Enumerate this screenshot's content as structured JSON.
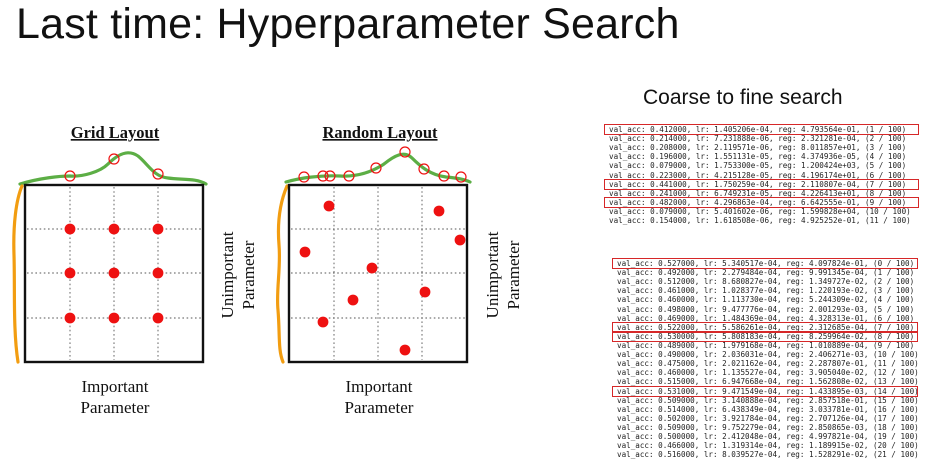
{
  "title": "Last time: Hyperparameter Search",
  "panels": {
    "grid": {
      "title": "Grid Layout",
      "x_label_line1": "Important",
      "x_label_line2": "Parameter",
      "y_label_line1": "Unimportant",
      "y_label_line2": "Parameter"
    },
    "random": {
      "title": "Random Layout",
      "x_label_line1": "Important",
      "x_label_line2": "Parameter",
      "y_label_line1": "Unimportant",
      "y_label_line2": "Parameter"
    }
  },
  "coarse_to_fine": {
    "title": "Coarse to fine search",
    "colors": {
      "highlight": "#d62728",
      "curve": "#5cae45",
      "side_curve": "#f29d11",
      "point": "#ee1111"
    },
    "coarse_runs": [
      {
        "text": "val_acc: 0.412000, lr: 1.405206e-04, reg: 4.793564e-01, (1 / 100)",
        "highlight": true
      },
      {
        "text": "val_acc: 0.214000, lr: 7.231888e-06, reg: 2.321281e-04, (2 / 100)",
        "highlight": false
      },
      {
        "text": "val_acc: 0.208000, lr: 2.119571e-06, reg: 8.011857e+01, (3 / 100)",
        "highlight": false
      },
      {
        "text": "val_acc: 0.196000, lr: 1.551131e-05, reg: 4.374936e-05, (4 / 100)",
        "highlight": false
      },
      {
        "text": "val_acc: 0.079000, lr: 1.753300e-05, reg: 1.200424e+03, (5 / 100)",
        "highlight": false
      },
      {
        "text": "val_acc: 0.223000, lr: 4.215128e-05, reg: 4.196174e+01, (6 / 100)",
        "highlight": false
      },
      {
        "text": "val_acc: 0.441000, lr: 1.750259e-04, reg: 2.110807e-04, (7 / 100)",
        "highlight": true
      },
      {
        "text": "val_acc: 0.241000, lr: 6.749231e-05, reg: 4.226413e+01, (8 / 100)",
        "highlight": false
      },
      {
        "text": "val_acc: 0.482000, lr: 4.296863e-04, reg: 6.642555e-01, (9 / 100)",
        "highlight": true
      },
      {
        "text": "val_acc: 0.079000, lr: 5.401602e-06, reg: 1.599828e+04, (10 / 100)",
        "highlight": false
      },
      {
        "text": "val_acc: 0.154000, lr: 1.618508e-06, reg: 4.925252e-01, (11 / 100)",
        "highlight": false
      }
    ],
    "fine_runs": [
      {
        "text": "val_acc: 0.527000, lr: 5.340517e-04, reg: 4.097824e-01, (0 / 100)",
        "highlight": true
      },
      {
        "text": "val_acc: 0.492000, lr: 2.279484e-04, reg: 9.991345e-04, (1 / 100)",
        "highlight": false
      },
      {
        "text": "val_acc: 0.512000, lr: 8.680827e-04, reg: 1.349727e-02, (2 / 100)",
        "highlight": false
      },
      {
        "text": "val_acc: 0.461000, lr: 1.028377e-04, reg: 1.220193e-02, (3 / 100)",
        "highlight": false
      },
      {
        "text": "val_acc: 0.460000, lr: 1.113730e-04, reg: 5.244309e-02, (4 / 100)",
        "highlight": false
      },
      {
        "text": "val_acc: 0.498000, lr: 9.477776e-04, reg: 2.001293e-03, (5 / 100)",
        "highlight": false
      },
      {
        "text": "val_acc: 0.469000, lr: 1.484369e-04, reg: 4.328313e-01, (6 / 100)",
        "highlight": false
      },
      {
        "text": "val_acc: 0.522000, lr: 5.586261e-04, reg: 2.312685e-04, (7 / 100)",
        "highlight": true
      },
      {
        "text": "val_acc: 0.530000, lr: 5.808183e-04, reg: 8.259964e-02, (8 / 100)",
        "highlight": true
      },
      {
        "text": "val_acc: 0.489000, lr: 1.979168e-04, reg: 1.010889e-04, (9 / 100)",
        "highlight": false
      },
      {
        "text": "val_acc: 0.490000, lr: 2.036031e-04, reg: 2.406271e-03, (10 / 100)",
        "highlight": false
      },
      {
        "text": "val_acc: 0.475000, lr: 2.021162e-04, reg: 2.287807e-01, (11 / 100)",
        "highlight": false
      },
      {
        "text": "val_acc: 0.460000, lr: 1.135527e-04, reg: 3.905040e-02, (12 / 100)",
        "highlight": false
      },
      {
        "text": "val_acc: 0.515000, lr: 6.947668e-04, reg: 1.562808e-02, (13 / 100)",
        "highlight": false
      },
      {
        "text": "val_acc: 0.531000, lr: 9.471549e-04, reg: 1.433895e-03, (14 / 100)",
        "highlight": true
      },
      {
        "text": "val_acc: 0.509000, lr: 3.140888e-04, reg: 2.857518e-01, (15 / 100)",
        "highlight": false
      },
      {
        "text": "val_acc: 0.514000, lr: 6.438349e-04, reg: 3.033781e-01, (16 / 100)",
        "highlight": false
      },
      {
        "text": "val_acc: 0.502000, lr: 3.921784e-04, reg: 2.707126e-04, (17 / 100)",
        "highlight": false
      },
      {
        "text": "val_acc: 0.509000, lr: 9.752279e-04, reg: 2.850865e-03, (18 / 100)",
        "highlight": false
      },
      {
        "text": "val_acc: 0.500000, lr: 2.412048e-04, reg: 4.997821e-04, (19 / 100)",
        "highlight": false
      },
      {
        "text": "val_acc: 0.466000, lr: 1.319314e-04, reg: 1.189915e-02, (20 / 100)",
        "highlight": false
      },
      {
        "text": "val_acc: 0.516000, lr: 8.039527e-04, reg: 1.528291e-02, (21 / 100)",
        "highlight": false
      }
    ]
  }
}
